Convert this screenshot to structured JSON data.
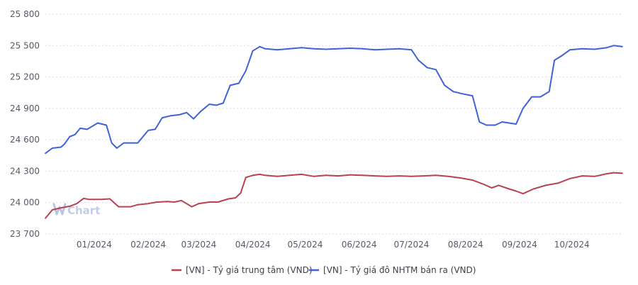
{
  "chart_data": {
    "type": "line",
    "title": "",
    "xlabel": "",
    "ylabel": "",
    "ylim": [
      23700,
      25800
    ],
    "y_ticks": [
      23700,
      24000,
      24300,
      24600,
      24900,
      25200,
      25500,
      25800
    ],
    "y_tick_labels": [
      "23 700",
      "24 000",
      "24 300",
      "24 600",
      "24 900",
      "25 200",
      "25 500",
      "25 800"
    ],
    "x_range": [
      "2023-12-04",
      "2024-10-30"
    ],
    "x_ticks": [
      "2024-01-01",
      "2024-02-01",
      "2024-03-01",
      "2024-04-01",
      "2024-05-01",
      "2024-06-01",
      "2024-07-01",
      "2024-08-01",
      "2024-09-01",
      "2024-10-01"
    ],
    "x_tick_labels": [
      "01/2024",
      "02/2024",
      "03/2024",
      "04/2024",
      "05/2024",
      "06/2024",
      "07/2024",
      "08/2024",
      "09/2024",
      "10/2024"
    ],
    "grid": "horizontal dotted",
    "legend_position": "bottom",
    "series": [
      {
        "name": "[VN] - Tỷ giá trung tâm (VND)",
        "color": "#b8424e",
        "points": [
          [
            "2023-12-04",
            23850
          ],
          [
            "2023-12-08",
            23930
          ],
          [
            "2023-12-13",
            23950
          ],
          [
            "2023-12-18",
            23965
          ],
          [
            "2023-12-22",
            23990
          ],
          [
            "2023-12-26",
            24040
          ],
          [
            "2023-12-29",
            24030
          ],
          [
            "2024-01-05",
            24030
          ],
          [
            "2024-01-10",
            24035
          ],
          [
            "2024-01-15",
            23960
          ],
          [
            "2024-01-22",
            23960
          ],
          [
            "2024-01-26",
            23980
          ],
          [
            "2024-02-01",
            23990
          ],
          [
            "2024-02-06",
            24005
          ],
          [
            "2024-02-12",
            24010
          ],
          [
            "2024-02-16",
            24005
          ],
          [
            "2024-02-20",
            24020
          ],
          [
            "2024-02-26",
            23960
          ],
          [
            "2024-03-01",
            23990
          ],
          [
            "2024-03-07",
            24005
          ],
          [
            "2024-03-12",
            24005
          ],
          [
            "2024-03-18",
            24035
          ],
          [
            "2024-03-22",
            24045
          ],
          [
            "2024-03-25",
            24090
          ],
          [
            "2024-03-28",
            24240
          ],
          [
            "2024-04-01",
            24260
          ],
          [
            "2024-04-05",
            24270
          ],
          [
            "2024-04-08",
            24260
          ],
          [
            "2024-04-15",
            24250
          ],
          [
            "2024-04-22",
            24260
          ],
          [
            "2024-04-29",
            24270
          ],
          [
            "2024-05-06",
            24250
          ],
          [
            "2024-05-13",
            24260
          ],
          [
            "2024-05-20",
            24255
          ],
          [
            "2024-05-27",
            24265
          ],
          [
            "2024-06-03",
            24260
          ],
          [
            "2024-06-10",
            24255
          ],
          [
            "2024-06-17",
            24250
          ],
          [
            "2024-06-24",
            24255
          ],
          [
            "2024-07-01",
            24250
          ],
          [
            "2024-07-08",
            24255
          ],
          [
            "2024-07-15",
            24260
          ],
          [
            "2024-07-22",
            24250
          ],
          [
            "2024-07-29",
            24235
          ],
          [
            "2024-08-05",
            24215
          ],
          [
            "2024-08-12",
            24170
          ],
          [
            "2024-08-16",
            24140
          ],
          [
            "2024-08-20",
            24165
          ],
          [
            "2024-08-26",
            24130
          ],
          [
            "2024-08-30",
            24110
          ],
          [
            "2024-09-03",
            24085
          ],
          [
            "2024-09-09",
            24130
          ],
          [
            "2024-09-16",
            24165
          ],
          [
            "2024-09-23",
            24185
          ],
          [
            "2024-09-30",
            24230
          ],
          [
            "2024-10-07",
            24255
          ],
          [
            "2024-10-14",
            24250
          ],
          [
            "2024-10-21",
            24275
          ],
          [
            "2024-10-25",
            24285
          ],
          [
            "2024-10-30",
            24280
          ]
        ]
      },
      {
        "name": "[VN] - Tỷ giá đô NHTM bán ra (VND)",
        "color": "#3f62d9",
        "points": [
          [
            "2023-12-04",
            24470
          ],
          [
            "2023-12-08",
            24520
          ],
          [
            "2023-12-13",
            24530
          ],
          [
            "2023-12-15",
            24560
          ],
          [
            "2023-12-18",
            24630
          ],
          [
            "2023-12-21",
            24650
          ],
          [
            "2023-12-24",
            24710
          ],
          [
            "2023-12-28",
            24700
          ],
          [
            "2024-01-03",
            24760
          ],
          [
            "2024-01-08",
            24740
          ],
          [
            "2024-01-11",
            24570
          ],
          [
            "2024-01-14",
            24520
          ],
          [
            "2024-01-18",
            24570
          ],
          [
            "2024-01-26",
            24570
          ],
          [
            "2024-02-01",
            24690
          ],
          [
            "2024-02-05",
            24700
          ],
          [
            "2024-02-09",
            24810
          ],
          [
            "2024-02-14",
            24830
          ],
          [
            "2024-02-19",
            24840
          ],
          [
            "2024-02-23",
            24860
          ],
          [
            "2024-02-27",
            24800
          ],
          [
            "2024-03-02",
            24870
          ],
          [
            "2024-03-07",
            24940
          ],
          [
            "2024-03-11",
            24930
          ],
          [
            "2024-03-15",
            24950
          ],
          [
            "2024-03-19",
            25120
          ],
          [
            "2024-03-24",
            25140
          ],
          [
            "2024-03-28",
            25260
          ],
          [
            "2024-04-01",
            25450
          ],
          [
            "2024-04-05",
            25490
          ],
          [
            "2024-04-08",
            25470
          ],
          [
            "2024-04-15",
            25460
          ],
          [
            "2024-04-22",
            25470
          ],
          [
            "2024-04-29",
            25480
          ],
          [
            "2024-05-06",
            25470
          ],
          [
            "2024-05-13",
            25465
          ],
          [
            "2024-05-20",
            25470
          ],
          [
            "2024-05-27",
            25475
          ],
          [
            "2024-06-03",
            25470
          ],
          [
            "2024-06-10",
            25460
          ],
          [
            "2024-06-17",
            25465
          ],
          [
            "2024-06-24",
            25470
          ],
          [
            "2024-07-01",
            25460
          ],
          [
            "2024-07-05",
            25360
          ],
          [
            "2024-07-10",
            25290
          ],
          [
            "2024-07-15",
            25270
          ],
          [
            "2024-07-20",
            25120
          ],
          [
            "2024-07-25",
            25060
          ],
          [
            "2024-07-30",
            25040
          ],
          [
            "2024-08-05",
            25020
          ],
          [
            "2024-08-09",
            24770
          ],
          [
            "2024-08-13",
            24740
          ],
          [
            "2024-08-18",
            24740
          ],
          [
            "2024-08-22",
            24770
          ],
          [
            "2024-08-26",
            24760
          ],
          [
            "2024-08-30",
            24750
          ],
          [
            "2024-09-03",
            24900
          ],
          [
            "2024-09-08",
            25010
          ],
          [
            "2024-09-13",
            25010
          ],
          [
            "2024-09-18",
            25060
          ],
          [
            "2024-09-21",
            25360
          ],
          [
            "2024-09-25",
            25400
          ],
          [
            "2024-09-30",
            25460
          ],
          [
            "2024-10-07",
            25470
          ],
          [
            "2024-10-14",
            25465
          ],
          [
            "2024-10-21",
            25480
          ],
          [
            "2024-10-25",
            25500
          ],
          [
            "2024-10-30",
            25490
          ]
        ]
      }
    ]
  },
  "watermark": {
    "text": "Chart",
    "icon": "wchart-logo-icon"
  }
}
